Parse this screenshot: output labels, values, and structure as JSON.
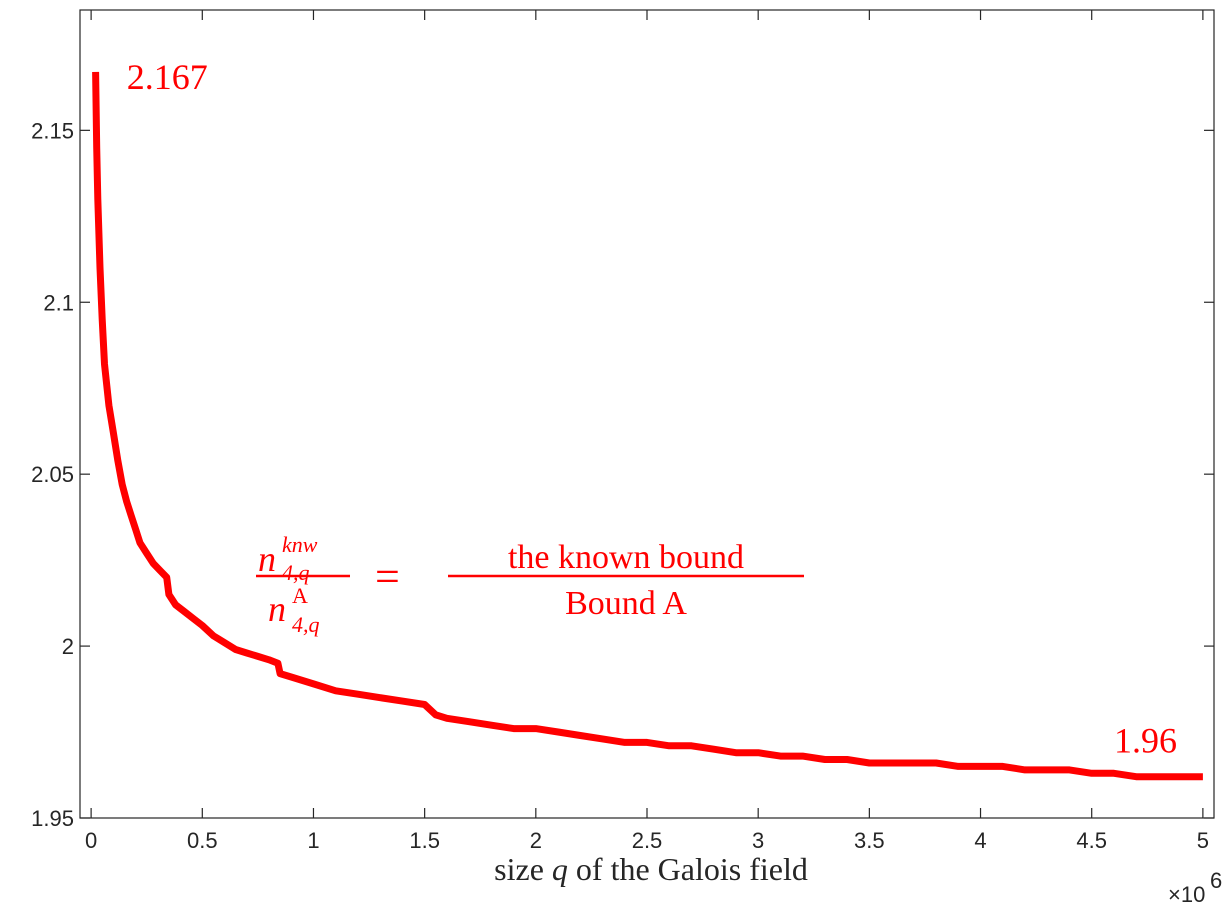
{
  "chart_data": {
    "type": "line",
    "title": "",
    "xlabel": {
      "pre": "size ",
      "var": "q",
      "post": " of the Galois field"
    },
    "ylabel": "",
    "x_multiplier": {
      "base": "×10",
      "exponent": "6"
    },
    "xlim": [
      -0.05,
      5.05
    ],
    "ylim": [
      1.95,
      2.185
    ],
    "x_ticks": [
      "0",
      "0.5",
      "1",
      "1.5",
      "2",
      "2.5",
      "3",
      "3.5",
      "4",
      "4.5",
      "5"
    ],
    "y_ticks": [
      "1.95",
      "2",
      "2.05",
      "2.1",
      "2.15"
    ],
    "grid": false,
    "legend": "none",
    "series": [
      {
        "color": "#ff0000",
        "x": [
          0.02,
          0.025,
          0.03,
          0.04,
          0.05,
          0.06,
          0.07,
          0.08,
          0.1,
          0.12,
          0.14,
          0.16,
          0.18,
          0.2,
          0.22,
          0.25,
          0.28,
          0.31,
          0.34,
          0.35,
          0.38,
          0.42,
          0.46,
          0.5,
          0.55,
          0.6,
          0.65,
          0.7,
          0.75,
          0.8,
          0.84,
          0.85,
          0.9,
          1.0,
          1.1,
          1.2,
          1.3,
          1.4,
          1.5,
          1.55,
          1.6,
          1.7,
          1.8,
          1.9,
          2.0,
          2.1,
          2.2,
          2.3,
          2.4,
          2.5,
          2.6,
          2.7,
          2.8,
          2.9,
          3.0,
          3.1,
          3.2,
          3.3,
          3.4,
          3.5,
          3.6,
          3.7,
          3.8,
          3.9,
          4.0,
          4.1,
          4.2,
          4.3,
          4.4,
          4.5,
          4.6,
          4.7,
          4.8,
          4.9,
          5.0
        ],
        "y": [
          2.167,
          2.145,
          2.13,
          2.11,
          2.095,
          2.082,
          2.076,
          2.07,
          2.062,
          2.054,
          2.047,
          2.042,
          2.038,
          2.034,
          2.03,
          2.027,
          2.024,
          2.022,
          2.02,
          2.015,
          2.012,
          2.01,
          2.008,
          2.006,
          2.003,
          2.001,
          1.999,
          1.998,
          1.997,
          1.996,
          1.995,
          1.992,
          1.991,
          1.989,
          1.987,
          1.986,
          1.985,
          1.984,
          1.983,
          1.98,
          1.979,
          1.978,
          1.977,
          1.976,
          1.976,
          1.975,
          1.974,
          1.973,
          1.972,
          1.972,
          1.971,
          1.971,
          1.97,
          1.969,
          1.969,
          1.968,
          1.968,
          1.967,
          1.967,
          1.966,
          1.966,
          1.966,
          1.966,
          1.965,
          1.965,
          1.965,
          1.964,
          1.964,
          1.964,
          1.963,
          1.963,
          1.962,
          1.962,
          1.962,
          1.962
        ]
      }
    ],
    "annotations": [
      {
        "text": "2.167",
        "x": 0.16,
        "y": 2.162
      },
      {
        "text": "1.96",
        "x": 4.6,
        "y": 1.969
      }
    ],
    "formula": {
      "n": "n",
      "sup_left": "knw",
      "sub": "4,q",
      "sup_right": "A",
      "equals": "=",
      "rhs_num": "the  known  bound",
      "rhs_den": "Bound  A"
    }
  }
}
